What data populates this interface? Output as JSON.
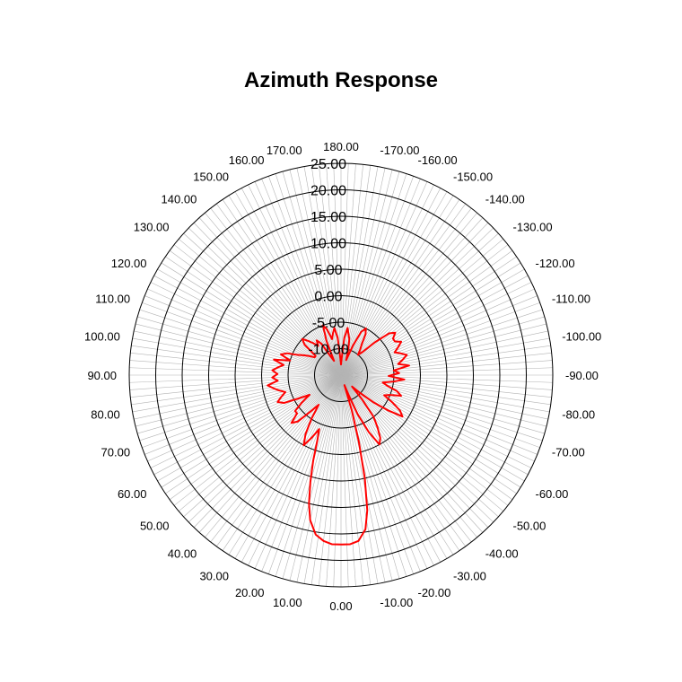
{
  "chart_data": {
    "type": "polar-line",
    "title": "Azimuth Response",
    "angle_labels": [
      "180.00",
      "-170.00",
      "-160.00",
      "-150.00",
      "-140.00",
      "-130.00",
      "-120.00",
      "-110.00",
      "-100.00",
      "-90.00",
      "-80.00",
      "-70.00",
      "-60.00",
      "-50.00",
      "-40.00",
      "-30.00",
      "-20.00",
      "-10.00",
      "0.00",
      "10.00",
      "20.00",
      "30.00",
      "40.00",
      "50.00",
      "60.00",
      "70.00",
      "80.00",
      "90.00",
      "100.00",
      "110.00",
      "120.00",
      "130.00",
      "140.00",
      "150.00",
      "160.00",
      "170.00"
    ],
    "radial_labels": [
      "-10.00",
      "-5.00",
      "0.00",
      "5.00",
      "10.00",
      "15.00",
      "20.00",
      "25.00"
    ],
    "radial_range": [
      -15,
      25
    ],
    "ring_values": [
      -10,
      -5,
      0,
      5,
      10,
      15,
      20,
      25
    ],
    "angular_grid_step_deg": 2,
    "series_color": "#ff0000",
    "series": [
      {
        "points": [
          [
            0,
            17
          ],
          [
            3,
            17
          ],
          [
            6,
            16.5
          ],
          [
            9,
            15.5
          ],
          [
            12,
            13
          ],
          [
            14,
            10
          ],
          [
            16,
            6
          ],
          [
            18,
            2
          ],
          [
            20,
            -2
          ],
          [
            22,
            -4
          ],
          [
            25,
            -2
          ],
          [
            28,
            0
          ],
          [
            31,
            -2
          ],
          [
            34,
            -5
          ],
          [
            37,
            -8
          ],
          [
            40,
            -6
          ],
          [
            43,
            -3
          ],
          [
            46,
            -2
          ],
          [
            49,
            -4
          ],
          [
            52,
            -4
          ],
          [
            55,
            -6
          ],
          [
            58,
            -8
          ],
          [
            61,
            -6
          ],
          [
            64,
            -3
          ],
          [
            67,
            -2
          ],
          [
            70,
            -3
          ],
          [
            73,
            -4
          ],
          [
            76,
            -3
          ],
          [
            79,
            -2
          ],
          [
            82,
            -1
          ],
          [
            85,
            -3
          ],
          [
            88,
            -2
          ],
          [
            91,
            -3
          ],
          [
            94,
            -2
          ],
          [
            97,
            -3
          ],
          [
            100,
            -4
          ],
          [
            103,
            -2
          ],
          [
            106,
            -5
          ],
          [
            109,
            -3
          ],
          [
            112,
            -4
          ],
          [
            115,
            -6
          ],
          [
            118,
            -7
          ],
          [
            121,
            -8
          ],
          [
            124,
            -9
          ],
          [
            127,
            -9
          ],
          [
            130,
            -6
          ],
          [
            133,
            -5
          ],
          [
            136,
            -6
          ],
          [
            139,
            -7
          ],
          [
            142,
            -8
          ],
          [
            145,
            -7
          ],
          [
            148,
            -8
          ],
          [
            151,
            -11
          ],
          [
            154,
            -12
          ],
          [
            157,
            -8
          ],
          [
            160,
            -5
          ],
          [
            163,
            -6
          ],
          [
            166,
            -8
          ],
          [
            169,
            -7
          ],
          [
            172,
            -6
          ],
          [
            175,
            -8
          ],
          [
            178,
            -12
          ],
          [
            180,
            -13
          ],
          [
            182,
            -12
          ],
          [
            185,
            -8
          ],
          [
            188,
            -6
          ],
          [
            190,
            -7
          ],
          [
            193,
            -8
          ],
          [
            196,
            -10
          ],
          [
            199,
            -12
          ],
          [
            202,
            -9
          ],
          [
            205,
            -6
          ],
          [
            208,
            -5
          ],
          [
            211,
            -6
          ],
          [
            214,
            -8
          ],
          [
            217,
            -9
          ],
          [
            220,
            -10
          ],
          [
            223,
            -9
          ],
          [
            226,
            -6
          ],
          [
            229,
            -3
          ],
          [
            232,
            -2
          ],
          [
            235,
            -3
          ],
          [
            238,
            -3
          ],
          [
            241,
            -2
          ],
          [
            244,
            -3
          ],
          [
            247,
            -4
          ],
          [
            250,
            -3
          ],
          [
            253,
            -2
          ],
          [
            256,
            -3
          ],
          [
            259,
            -4
          ],
          [
            262,
            -2
          ],
          [
            265,
            -5
          ],
          [
            268,
            -4
          ],
          [
            271,
            -6
          ],
          [
            274,
            -3
          ],
          [
            277,
            -5
          ],
          [
            280,
            -7
          ],
          [
            283,
            -6
          ],
          [
            286,
            -4
          ],
          [
            289,
            -3
          ],
          [
            292,
            -5
          ],
          [
            295,
            -6
          ],
          [
            298,
            -4
          ],
          [
            301,
            -2
          ],
          [
            304,
            -1
          ],
          [
            307,
            -4
          ],
          [
            310,
            -7
          ],
          [
            313,
            -10
          ],
          [
            316,
            -12
          ],
          [
            319,
            -9
          ],
          [
            322,
            -5
          ],
          [
            325,
            -3
          ],
          [
            328,
            -1
          ],
          [
            331,
            0
          ],
          [
            334,
            -3
          ],
          [
            337,
            -7
          ],
          [
            339,
            -11
          ],
          [
            341,
            -13
          ],
          [
            343,
            -8
          ],
          [
            345,
            -2
          ],
          [
            347,
            5
          ],
          [
            349,
            11
          ],
          [
            351,
            14.5
          ],
          [
            354,
            16.5
          ],
          [
            357,
            17
          ],
          [
            360,
            17
          ]
        ]
      }
    ]
  }
}
